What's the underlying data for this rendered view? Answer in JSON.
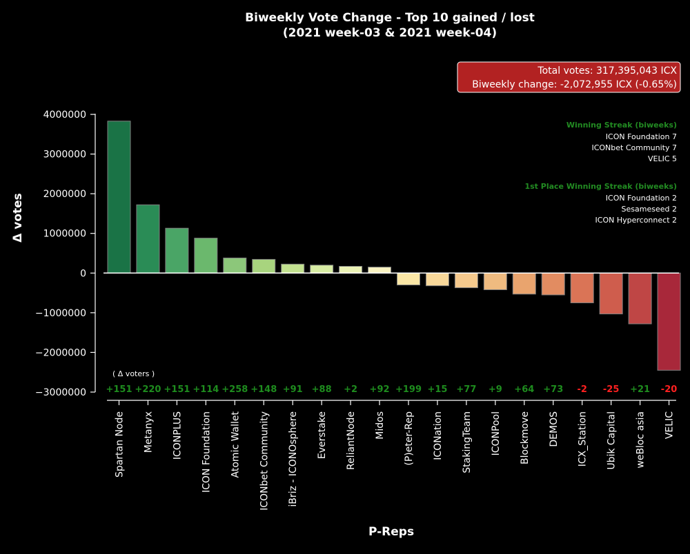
{
  "chart_data": {
    "type": "bar",
    "title_line1": "Biweekly Vote Change - Top 10 gained / lost",
    "title_line2": "(2021 week-03 & 2021 week-04)",
    "xlabel": "P-Reps",
    "ylabel": "Δ votes",
    "ylim": [
      -3000000,
      4000000
    ],
    "yticks": [
      4000000,
      3000000,
      2000000,
      1000000,
      0,
      -1000000,
      -2000000,
      -3000000
    ],
    "ytick_labels": [
      "4000000",
      "3000000",
      "2000000",
      "1000000",
      "0",
      "−1000000",
      "−2000000",
      "−3000000"
    ],
    "categories": [
      "Spartan Node",
      "Metanyx",
      "ICONPLUS",
      "ICON Foundation",
      "Atomic Wallet",
      "ICONbet Community",
      "iBriz - ICONOsphere",
      "Everstake",
      "ReliantNode",
      "Midos",
      "(P)eter-Rep",
      "ICONation",
      "StakingTeam",
      "ICONPool",
      "Blockmove",
      "DEMOS",
      "ICX_Station",
      "Ubik Capital",
      "weBloc asia",
      "VELIC"
    ],
    "values": [
      3830000,
      1720000,
      1130000,
      880000,
      380000,
      345000,
      225000,
      200000,
      170000,
      150000,
      -300000,
      -320000,
      -370000,
      -420000,
      -530000,
      -550000,
      -750000,
      -1030000,
      -1280000,
      -2450000
    ],
    "colors": [
      "#1a7346",
      "#2a8c56",
      "#4aa566",
      "#6bb86d",
      "#8cc77a",
      "#a8d47e",
      "#c2e18f",
      "#d8eda4",
      "#ebf2b5",
      "#faf4c2",
      "#fbe7a6",
      "#f8d89a",
      "#f5c98d",
      "#efbb80",
      "#e9a46e",
      "#e28c61",
      "#da7456",
      "#cf5d4d",
      "#bf4645",
      "#a8283a"
    ],
    "voter_changes_label": "( Δ voters )",
    "voter_changes": [
      "+151",
      "+220",
      "+151",
      "+114",
      "+258",
      "+148",
      "+91",
      "+88",
      "+2",
      "+92",
      "+199",
      "+15",
      "+77",
      "+9",
      "+64",
      "+73",
      "-2",
      "-25",
      "+21",
      "-20"
    ],
    "positive_color": "#1e8c1e",
    "negative_color": "#ff2020",
    "total_box": {
      "line1": "Total votes: 317,395,043 ICX",
      "line2": "Biweekly change: -2,072,955 ICX (-0.65%)",
      "background": "#b22222"
    },
    "streak_title": "Winning Streak (biweeks)",
    "streak_entries": [
      "ICON Foundation  7",
      "ICONbet Community  7",
      "VELIC  5"
    ],
    "first_place_title": "1st Place Winning Streak (biweeks)",
    "first_place_entries": [
      "ICON Foundation  2",
      "Sesameseed  2",
      "ICON Hyperconnect  2"
    ],
    "streak_title_color": "#228b22"
  }
}
